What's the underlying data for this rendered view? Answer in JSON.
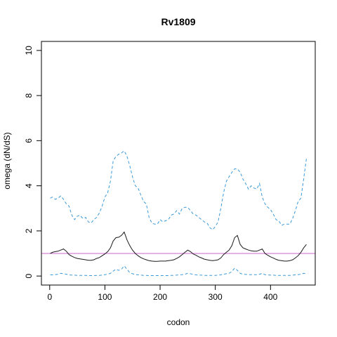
{
  "chart_data": {
    "type": "line",
    "title": "Rv1809",
    "xlabel": "codon",
    "ylabel": "omega (dN/dS)",
    "xlim": [
      -15,
      481
    ],
    "ylim": [
      -0.4,
      10.4
    ],
    "x_ticks": [
      0,
      100,
      200,
      300,
      400
    ],
    "y_ticks": [
      0,
      2,
      4,
      6,
      8,
      10
    ],
    "grid": false,
    "reference_line": {
      "y": 1,
      "color": "#cc66cc"
    },
    "series": [
      {
        "role": "upper",
        "color": "#3a9ad9",
        "dash": "dashed",
        "x": [
          1,
          5,
          10,
          15,
          20,
          25,
          30,
          35,
          40,
          45,
          50,
          55,
          60,
          65,
          70,
          75,
          80,
          85,
          90,
          95,
          100,
          105,
          110,
          115,
          120,
          125,
          130,
          135,
          140,
          145,
          150,
          155,
          160,
          165,
          170,
          175,
          180,
          185,
          190,
          195,
          200,
          205,
          210,
          215,
          220,
          225,
          230,
          235,
          240,
          245,
          250,
          255,
          260,
          265,
          270,
          275,
          280,
          285,
          290,
          295,
          300,
          305,
          310,
          315,
          320,
          325,
          330,
          335,
          340,
          345,
          350,
          355,
          360,
          365,
          370,
          375,
          380,
          385,
          390,
          395,
          400,
          405,
          410,
          415,
          420,
          425,
          430,
          435,
          440,
          445,
          450,
          455,
          460,
          465
        ],
        "y": [
          3.45,
          3.5,
          3.4,
          3.45,
          3.55,
          3.4,
          3.2,
          3.1,
          2.7,
          2.5,
          2.65,
          2.7,
          2.55,
          2.6,
          2.4,
          2.35,
          2.5,
          2.6,
          2.8,
          3.1,
          3.5,
          3.7,
          4.2,
          5.1,
          5.3,
          5.4,
          5.45,
          5.55,
          5.3,
          4.9,
          4.4,
          4.0,
          3.9,
          3.6,
          3.3,
          3.2,
          2.6,
          2.35,
          2.3,
          2.3,
          2.5,
          2.4,
          2.45,
          2.5,
          2.7,
          2.75,
          2.9,
          2.75,
          3.0,
          3.05,
          3.05,
          2.9,
          2.75,
          2.7,
          2.6,
          2.5,
          2.4,
          2.35,
          2.15,
          2.05,
          2.2,
          2.4,
          3.0,
          3.7,
          4.2,
          4.4,
          4.6,
          4.75,
          4.75,
          4.6,
          4.3,
          4.1,
          3.85,
          4.0,
          3.9,
          3.85,
          4.1,
          3.5,
          3.2,
          3.05,
          2.95,
          2.75,
          2.5,
          2.45,
          2.25,
          2.3,
          2.3,
          2.3,
          2.55,
          2.9,
          3.3,
          3.45,
          4.3,
          5.2
        ]
      },
      {
        "role": "estimate",
        "color": "#1a1a1a",
        "dash": "solid",
        "x": [
          1,
          5,
          10,
          15,
          20,
          25,
          30,
          35,
          40,
          45,
          50,
          55,
          60,
          65,
          70,
          75,
          80,
          85,
          90,
          95,
          100,
          105,
          110,
          115,
          120,
          125,
          130,
          135,
          140,
          145,
          150,
          155,
          160,
          165,
          170,
          175,
          180,
          185,
          190,
          195,
          200,
          205,
          210,
          215,
          220,
          225,
          230,
          235,
          240,
          245,
          250,
          255,
          260,
          265,
          270,
          275,
          280,
          285,
          290,
          295,
          300,
          305,
          310,
          315,
          320,
          325,
          330,
          335,
          340,
          345,
          350,
          355,
          360,
          365,
          370,
          375,
          380,
          385,
          390,
          395,
          400,
          405,
          410,
          415,
          420,
          425,
          430,
          435,
          440,
          445,
          450,
          455,
          460,
          465
        ],
        "y": [
          1.0,
          1.05,
          1.08,
          1.1,
          1.15,
          1.2,
          1.1,
          0.95,
          0.88,
          0.82,
          0.78,
          0.76,
          0.74,
          0.72,
          0.7,
          0.7,
          0.72,
          0.78,
          0.82,
          0.9,
          0.98,
          1.08,
          1.25,
          1.55,
          1.7,
          1.72,
          1.8,
          1.95,
          1.6,
          1.35,
          1.15,
          1.0,
          0.9,
          0.82,
          0.76,
          0.72,
          0.68,
          0.66,
          0.65,
          0.65,
          0.66,
          0.66,
          0.66,
          0.68,
          0.7,
          0.72,
          0.78,
          0.85,
          0.95,
          1.05,
          1.15,
          1.08,
          0.98,
          0.92,
          0.85,
          0.8,
          0.75,
          0.72,
          0.7,
          0.68,
          0.7,
          0.72,
          0.8,
          0.95,
          1.05,
          1.15,
          1.35,
          1.7,
          1.8,
          1.4,
          1.25,
          1.2,
          1.15,
          1.12,
          1.1,
          1.1,
          1.15,
          1.2,
          1.0,
          0.92,
          0.85,
          0.8,
          0.74,
          0.7,
          0.68,
          0.66,
          0.66,
          0.68,
          0.72,
          0.8,
          0.9,
          1.05,
          1.25,
          1.4
        ]
      },
      {
        "role": "lower",
        "color": "#3a9ad9",
        "dash": "dashed",
        "x": [
          1,
          5,
          10,
          15,
          20,
          25,
          30,
          35,
          40,
          45,
          50,
          55,
          60,
          65,
          70,
          75,
          80,
          85,
          90,
          95,
          100,
          105,
          110,
          115,
          120,
          125,
          130,
          135,
          140,
          145,
          150,
          155,
          160,
          165,
          170,
          175,
          180,
          185,
          190,
          195,
          200,
          205,
          210,
          215,
          220,
          225,
          230,
          235,
          240,
          245,
          250,
          255,
          260,
          265,
          270,
          275,
          280,
          285,
          290,
          295,
          300,
          305,
          310,
          315,
          320,
          325,
          330,
          335,
          340,
          345,
          350,
          355,
          360,
          365,
          370,
          375,
          380,
          385,
          390,
          395,
          400,
          405,
          410,
          415,
          420,
          425,
          430,
          435,
          440,
          445,
          450,
          455,
          460,
          465
        ],
        "y": [
          0.05,
          0.05,
          0.06,
          0.08,
          0.12,
          0.1,
          0.08,
          0.05,
          0.04,
          0.04,
          0.03,
          0.03,
          0.03,
          0.03,
          0.02,
          0.02,
          0.02,
          0.03,
          0.03,
          0.04,
          0.06,
          0.08,
          0.12,
          0.22,
          0.3,
          0.25,
          0.3,
          0.45,
          0.3,
          0.15,
          0.1,
          0.07,
          0.05,
          0.04,
          0.03,
          0.03,
          0.02,
          0.02,
          0.02,
          0.02,
          0.02,
          0.02,
          0.02,
          0.02,
          0.03,
          0.03,
          0.04,
          0.05,
          0.06,
          0.08,
          0.12,
          0.1,
          0.07,
          0.05,
          0.04,
          0.04,
          0.03,
          0.03,
          0.03,
          0.03,
          0.03,
          0.04,
          0.05,
          0.08,
          0.1,
          0.12,
          0.2,
          0.35,
          0.25,
          0.12,
          0.08,
          0.07,
          0.06,
          0.06,
          0.06,
          0.06,
          0.08,
          0.12,
          0.06,
          0.05,
          0.04,
          0.04,
          0.03,
          0.03,
          0.03,
          0.03,
          0.03,
          0.03,
          0.04,
          0.05,
          0.06,
          0.08,
          0.12,
          0.1
        ]
      }
    ]
  }
}
